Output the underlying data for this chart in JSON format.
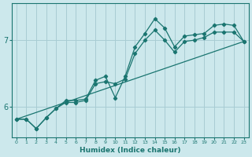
{
  "xlabel": "Humidex (Indice chaleur)",
  "bg_color": "#cce8ec",
  "grid_color": "#a8cdd4",
  "line_color": "#1a7570",
  "xmin": -0.5,
  "xmax": 23.5,
  "ymin": 5.55,
  "ymax": 7.55,
  "yticks": [
    6,
    7
  ],
  "xticks": [
    0,
    1,
    2,
    3,
    4,
    5,
    6,
    7,
    8,
    9,
    10,
    11,
    12,
    13,
    14,
    15,
    16,
    17,
    18,
    19,
    20,
    21,
    22,
    23
  ],
  "line1_x": [
    0,
    1,
    2,
    3,
    4,
    5,
    6,
    7,
    8,
    9,
    10,
    11,
    12,
    13,
    14,
    15,
    16,
    17,
    18,
    19,
    20,
    21,
    22,
    23
  ],
  "line1_y": [
    5.82,
    5.82,
    5.68,
    5.84,
    5.98,
    6.1,
    6.1,
    6.12,
    6.4,
    6.46,
    6.14,
    6.46,
    6.9,
    7.1,
    7.32,
    7.18,
    6.9,
    7.06,
    7.08,
    7.1,
    7.22,
    7.24,
    7.22,
    6.98
  ],
  "line2_x": [
    0,
    1,
    2,
    3,
    4,
    5,
    6,
    7,
    8,
    9,
    10,
    11,
    12,
    13,
    14,
    15,
    16,
    17,
    18,
    19,
    20,
    21,
    22,
    23
  ],
  "line2_y": [
    5.82,
    5.82,
    5.68,
    5.84,
    5.98,
    6.07,
    6.07,
    6.1,
    6.35,
    6.38,
    6.35,
    6.42,
    6.8,
    7.0,
    7.15,
    7.0,
    6.82,
    6.98,
    7.0,
    7.04,
    7.12,
    7.12,
    7.12,
    6.98
  ],
  "line3_x": [
    0,
    23
  ],
  "line3_y": [
    5.82,
    6.98
  ]
}
